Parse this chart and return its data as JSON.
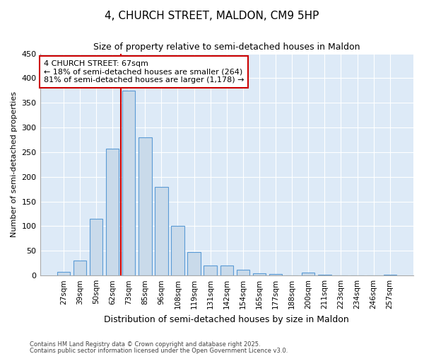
{
  "title": "4, CHURCH STREET, MALDON, CM9 5HP",
  "subtitle": "Size of property relative to semi-detached houses in Maldon",
  "xlabel": "Distribution of semi-detached houses by size in Maldon",
  "ylabel": "Number of semi-detached properties",
  "categories": [
    "27sqm",
    "39sqm",
    "50sqm",
    "62sqm",
    "73sqm",
    "85sqm",
    "96sqm",
    "108sqm",
    "119sqm",
    "131sqm",
    "142sqm",
    "154sqm",
    "165sqm",
    "177sqm",
    "188sqm",
    "200sqm",
    "211sqm",
    "223sqm",
    "234sqm",
    "246sqm",
    "257sqm"
  ],
  "values": [
    7,
    30,
    115,
    257,
    375,
    280,
    180,
    100,
    47,
    20,
    20,
    12,
    5,
    3,
    0,
    6,
    2,
    0,
    0,
    0,
    2
  ],
  "bar_color": "#c9daea",
  "bar_edge_color": "#5b9bd5",
  "property_size_label": "4 CHURCH STREET: 67sqm",
  "pct_smaller": 18,
  "pct_smaller_count": 264,
  "pct_larger": 81,
  "pct_larger_count": 1178,
  "vline_color": "#cc0000",
  "annotation_box_color": "#cc0000",
  "background_color": "#ddeaf7",
  "grid_color": "#ffffff",
  "ylim": [
    0,
    450
  ],
  "footnote1": "Contains HM Land Registry data © Crown copyright and database right 2025.",
  "footnote2": "Contains public sector information licensed under the Open Government Licence v3.0."
}
